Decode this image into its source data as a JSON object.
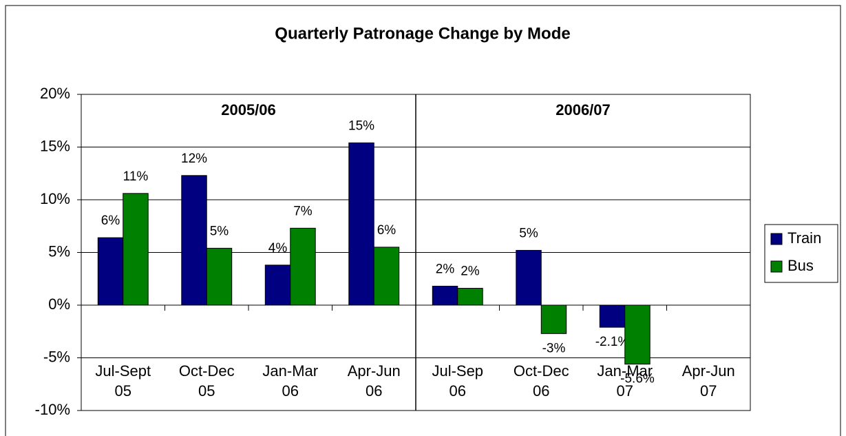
{
  "chart_data": {
    "type": "bar",
    "title": "Quarterly Patronage Change by Mode",
    "categories": [
      "Jul-Sept 05",
      "Oct-Dec 05",
      "Jan-Mar 06",
      "Apr-Jun 06",
      "Jul-Sep 06",
      "Oct-Dec 06",
      "Jan-Mar 07",
      "Apr-Jun 07"
    ],
    "series": [
      {
        "name": "Train",
        "color": "#000080",
        "values": [
          6.4,
          12.3,
          3.8,
          15.4,
          1.8,
          5.2,
          -2.1,
          null
        ],
        "value_labels": [
          "6%",
          "12%",
          "4%",
          "15%",
          "2%",
          "5%",
          "-2.1%",
          null
        ]
      },
      {
        "name": "Bus",
        "color": "#008000",
        "values": [
          10.6,
          5.4,
          7.3,
          5.5,
          1.6,
          -2.7,
          -5.6,
          null
        ],
        "value_labels": [
          "11%",
          "5%",
          "7%",
          "6%",
          "2%",
          "-3%",
          "-5.6%",
          null
        ]
      }
    ],
    "annotations": [
      "2005/06",
      "2006/07"
    ],
    "ylim": [
      -10,
      20
    ],
    "yticks": [
      {
        "value": -10,
        "label": "-10%"
      },
      {
        "value": -5,
        "label": "-5%"
      },
      {
        "value": 0,
        "label": "0%"
      },
      {
        "value": 5,
        "label": "5%"
      },
      {
        "value": 10,
        "label": "10%"
      },
      {
        "value": 15,
        "label": "15%"
      },
      {
        "value": 20,
        "label": "20%"
      }
    ],
    "grid": true,
    "legend": "right"
  }
}
